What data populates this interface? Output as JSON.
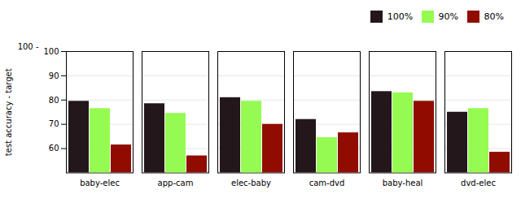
{
  "chart_data": {
    "type": "bar",
    "categories": [
      "baby-elec",
      "app-cam",
      "elec-baby",
      "cam-dvd",
      "baby-heal",
      "dvd-elec"
    ],
    "series": [
      {
        "name": "100%",
        "values": [
          79.5,
          78.5,
          81.0,
          72.0,
          83.5,
          75.0
        ]
      },
      {
        "name": "90%",
        "values": [
          76.5,
          74.5,
          79.5,
          64.5,
          83.0,
          76.5
        ]
      },
      {
        "name": "80%",
        "values": [
          61.5,
          57.0,
          70.0,
          66.5,
          79.5,
          58.5
        ]
      }
    ],
    "ylabel": "test accuracy - target",
    "ylim": [
      50,
      100
    ],
    "yticks": [
      60,
      70,
      80,
      90,
      100
    ],
    "annotations": [
      "100 -"
    ],
    "grid": true,
    "legend": "upper right"
  }
}
